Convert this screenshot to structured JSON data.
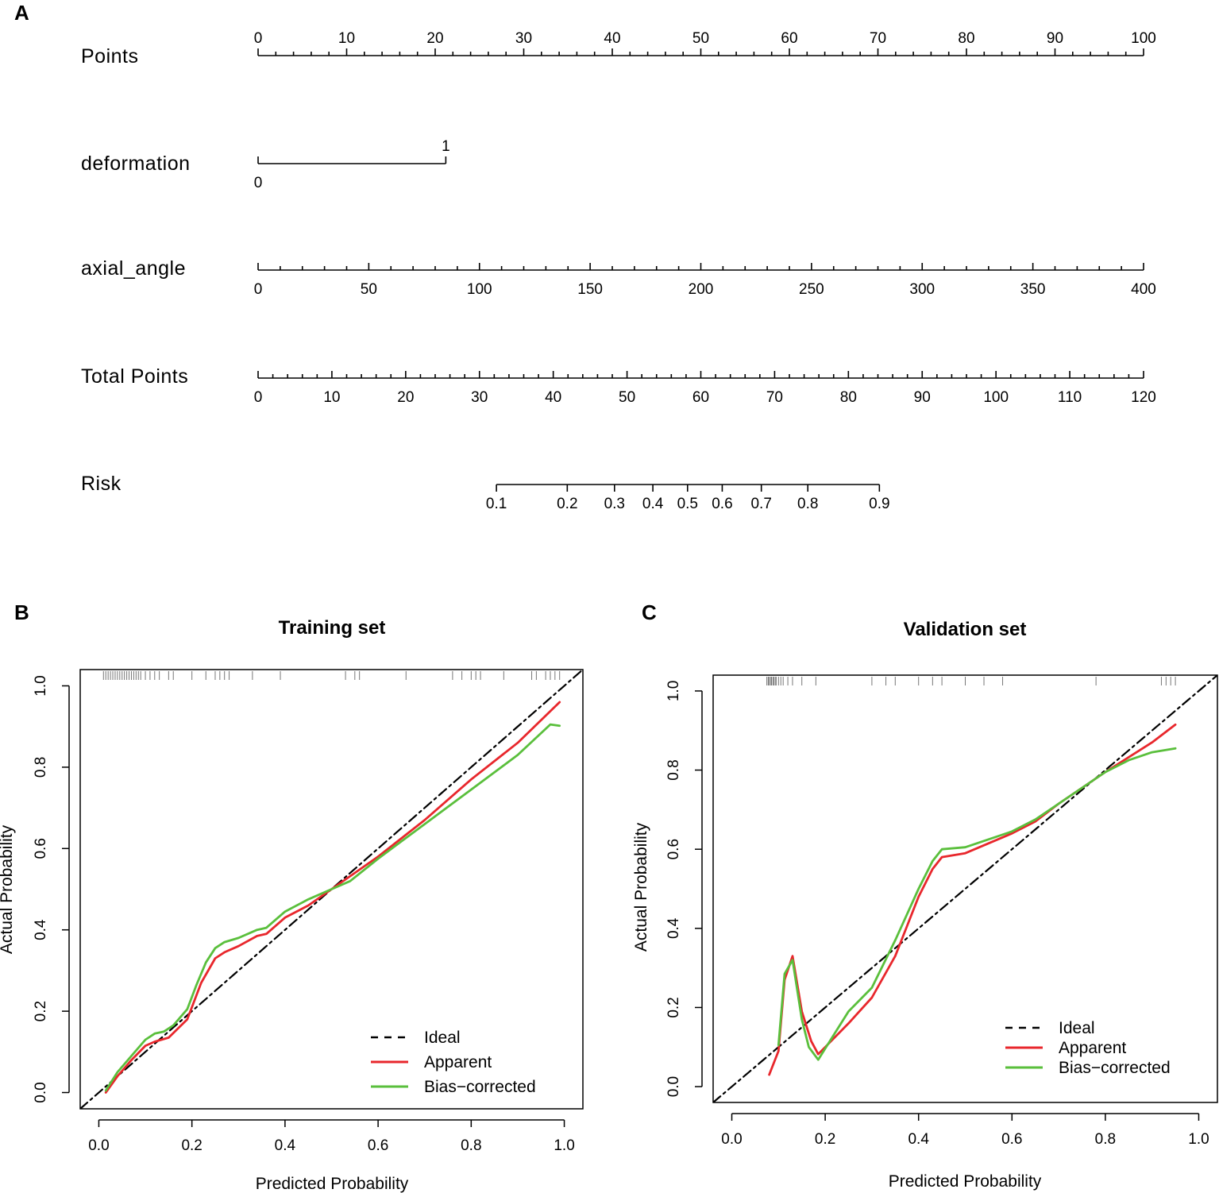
{
  "panels": {
    "a": {
      "letter": "A"
    },
    "b": {
      "letter": "B"
    },
    "c": {
      "letter": "C"
    }
  },
  "chart_data": [
    {
      "type": "nomogram",
      "panel": "A",
      "points_per_total_point": 0.8333,
      "rows": [
        {
          "name": "Points",
          "kind": "points",
          "range": [
            0,
            100
          ],
          "major_ticks": [
            0,
            10,
            20,
            30,
            40,
            50,
            60,
            70,
            80,
            90,
            100
          ],
          "minor_step": 2,
          "labels_above": true
        },
        {
          "name": "deformation",
          "kind": "categorical",
          "points": [
            0,
            21.2
          ],
          "levels": [
            {
              "value": "0",
              "points": 0,
              "label_below": true
            },
            {
              "value": "1",
              "points": 21.2,
              "label_below": false
            }
          ]
        },
        {
          "name": "axial_angle",
          "kind": "continuous",
          "range": [
            0,
            400
          ],
          "major_ticks": [
            0,
            50,
            100,
            150,
            200,
            250,
            300,
            350,
            400
          ],
          "minor_step": 10,
          "points_per_unit": 0.25,
          "labels_above": false
        },
        {
          "name": "Total Points",
          "kind": "total",
          "range": [
            0,
            120
          ],
          "major_ticks": [
            0,
            10,
            20,
            30,
            40,
            50,
            60,
            70,
            80,
            90,
            100,
            110,
            120
          ],
          "minor_step": 2,
          "labels_above": false
        },
        {
          "name": "Risk",
          "kind": "risk",
          "ticks": [
            {
              "label": "0.1",
              "total": 32.3
            },
            {
              "label": "0.2",
              "total": 41.9
            },
            {
              "label": "0.3",
              "total": 48.3
            },
            {
              "label": "0.4",
              "total": 53.5
            },
            {
              "label": "0.5",
              "total": 58.2
            },
            {
              "label": "0.6",
              "total": 62.9
            },
            {
              "label": "0.7",
              "total": 68.2
            },
            {
              "label": "0.8",
              "total": 74.5
            },
            {
              "label": "0.9",
              "total": 84.2
            }
          ]
        }
      ]
    },
    {
      "type": "line",
      "panel": "B",
      "title": "Training set",
      "xlabel": "Predicted Probability",
      "ylabel": "Actual Probability",
      "xlim": [
        -0.04,
        1.04
      ],
      "ylim": [
        -0.04,
        1.04
      ],
      "x_ticks": [
        "0.0",
        "0.2",
        "0.4",
        "0.6",
        "0.8",
        "1.0"
      ],
      "y_ticks": [
        "0.0",
        "0.2",
        "0.4",
        "0.6",
        "0.8",
        "1.0"
      ],
      "rug": [
        0.01,
        0.015,
        0.02,
        0.025,
        0.03,
        0.035,
        0.04,
        0.045,
        0.05,
        0.055,
        0.06,
        0.065,
        0.07,
        0.075,
        0.08,
        0.085,
        0.09,
        0.1,
        0.11,
        0.12,
        0.13,
        0.15,
        0.16,
        0.2,
        0.23,
        0.25,
        0.26,
        0.27,
        0.28,
        0.33,
        0.39,
        0.53,
        0.55,
        0.56,
        0.66,
        0.76,
        0.78,
        0.8,
        0.81,
        0.82,
        0.87,
        0.93,
        0.94,
        0.96,
        0.97,
        0.98,
        0.99
      ],
      "legend": {
        "position": "bottom-right",
        "labels": [
          "Ideal",
          "Apparent",
          "Bias−corrected"
        ]
      },
      "series": [
        {
          "name": "Ideal",
          "color": "#000000",
          "style": "dashdot",
          "x": [
            -0.04,
            1.04
          ],
          "y": [
            -0.04,
            1.04
          ]
        },
        {
          "name": "Apparent",
          "color": "#e8272c",
          "style": "solid",
          "x": [
            0.015,
            0.04,
            0.07,
            0.1,
            0.12,
            0.15,
            0.19,
            0.22,
            0.25,
            0.27,
            0.3,
            0.34,
            0.36,
            0.4,
            0.45,
            0.5,
            0.55,
            0.6,
            0.7,
            0.8,
            0.9,
            0.99
          ],
          "y": [
            0.0,
            0.04,
            0.08,
            0.115,
            0.125,
            0.135,
            0.18,
            0.27,
            0.33,
            0.345,
            0.36,
            0.385,
            0.39,
            0.43,
            0.46,
            0.5,
            0.54,
            0.58,
            0.67,
            0.77,
            0.86,
            0.96
          ]
        },
        {
          "name": "Bias−corrected",
          "color": "#5abf3c",
          "style": "solid",
          "x": [
            0.015,
            0.04,
            0.07,
            0.1,
            0.12,
            0.14,
            0.16,
            0.19,
            0.21,
            0.23,
            0.25,
            0.27,
            0.3,
            0.34,
            0.36,
            0.4,
            0.45,
            0.5,
            0.54,
            0.6,
            0.7,
            0.8,
            0.9,
            0.97,
            0.99
          ],
          "y": [
            0.005,
            0.05,
            0.09,
            0.13,
            0.145,
            0.15,
            0.165,
            0.205,
            0.265,
            0.32,
            0.355,
            0.37,
            0.38,
            0.4,
            0.405,
            0.445,
            0.475,
            0.5,
            0.52,
            0.575,
            0.66,
            0.745,
            0.83,
            0.905,
            0.902
          ]
        }
      ]
    },
    {
      "type": "line",
      "panel": "C",
      "title": "Validation set",
      "xlabel": "Predicted Probability",
      "ylabel": "Actual Probability",
      "xlim": [
        -0.04,
        1.04
      ],
      "ylim": [
        -0.04,
        1.04
      ],
      "x_ticks": [
        "0.0",
        "0.2",
        "0.4",
        "0.6",
        "0.8",
        "1.0"
      ],
      "y_ticks": [
        "0.0",
        "0.2",
        "0.4",
        "0.6",
        "0.8",
        "1.0"
      ],
      "rug": [
        0.075,
        0.078,
        0.08,
        0.083,
        0.085,
        0.088,
        0.09,
        0.093,
        0.095,
        0.1,
        0.105,
        0.11,
        0.12,
        0.13,
        0.15,
        0.18,
        0.3,
        0.33,
        0.35,
        0.4,
        0.43,
        0.45,
        0.5,
        0.54,
        0.58,
        0.78,
        0.92,
        0.93,
        0.94,
        0.95
      ],
      "legend": {
        "position": "bottom-right",
        "labels": [
          "Ideal",
          "Apparent",
          "Bias−corrected"
        ]
      },
      "series": [
        {
          "name": "Ideal",
          "color": "#000000",
          "style": "dashdot",
          "x": [
            -0.04,
            1.04
          ],
          "y": [
            -0.04,
            1.04
          ]
        },
        {
          "name": "Apparent",
          "color": "#e8272c",
          "style": "solid",
          "x": [
            0.08,
            0.1,
            0.113,
            0.13,
            0.15,
            0.17,
            0.185,
            0.2,
            0.25,
            0.3,
            0.35,
            0.4,
            0.43,
            0.45,
            0.5,
            0.6,
            0.65,
            0.7,
            0.8,
            0.9,
            0.95
          ],
          "y": [
            0.03,
            0.09,
            0.27,
            0.33,
            0.19,
            0.115,
            0.082,
            0.1,
            0.16,
            0.225,
            0.33,
            0.48,
            0.55,
            0.58,
            0.59,
            0.64,
            0.67,
            0.715,
            0.795,
            0.87,
            0.915
          ]
        },
        {
          "name": "Bias−corrected",
          "color": "#5abf3c",
          "style": "solid",
          "x": [
            0.1,
            0.113,
            0.13,
            0.15,
            0.165,
            0.185,
            0.21,
            0.25,
            0.3,
            0.35,
            0.4,
            0.43,
            0.45,
            0.5,
            0.6,
            0.65,
            0.7,
            0.8,
            0.85,
            0.9,
            0.95
          ],
          "y": [
            0.105,
            0.285,
            0.32,
            0.17,
            0.1,
            0.068,
            0.115,
            0.19,
            0.25,
            0.37,
            0.5,
            0.57,
            0.6,
            0.605,
            0.645,
            0.675,
            0.715,
            0.795,
            0.825,
            0.845,
            0.855
          ]
        }
      ]
    }
  ]
}
